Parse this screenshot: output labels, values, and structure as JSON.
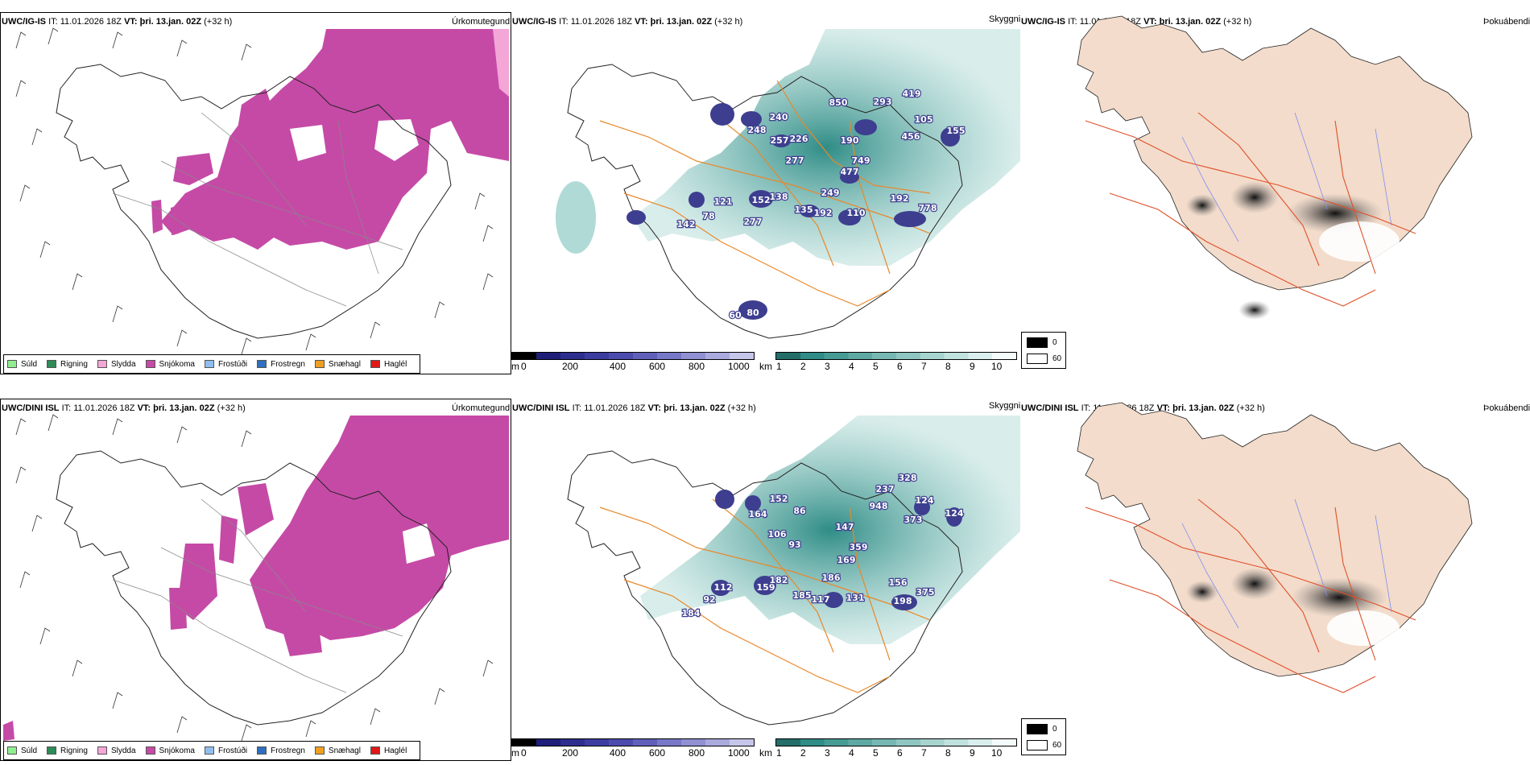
{
  "rows": [
    {
      "model": "UWC/IG-IS",
      "it_label": "IT:",
      "it_value": "11.01.2026 18Z",
      "vt_label": "VT:",
      "vt_value": "þri. 13.jan. 02Z",
      "lead": "(+32 h)",
      "height_labels": [
        "850",
        "293",
        "419",
        "240",
        "248",
        "257",
        "226",
        "105",
        "456",
        "155",
        "190",
        "277",
        "749",
        "477",
        "249",
        "121",
        "152",
        "138",
        "135",
        "192",
        "110",
        "192",
        "778",
        "78",
        "142",
        "277",
        "60",
        "80"
      ]
    },
    {
      "model": "UWC/DINI ISL",
      "it_label": "IT:",
      "it_value": "11.01.2026 18Z",
      "vt_label": "VT:",
      "vt_value": "þri. 13.jan. 02Z",
      "lead": "(+32 h)",
      "height_labels": [
        "237",
        "328",
        "124",
        "124",
        "948",
        "373",
        "152",
        "164",
        "86",
        "106",
        "93",
        "147",
        "359",
        "169",
        "186",
        "112",
        "92",
        "159",
        "182",
        "185",
        "117",
        "131",
        "156",
        "198",
        "375",
        "184"
      ]
    }
  ],
  "panel_titles": {
    "precip": "Úrkomutegund",
    "visibility": "Skyggni",
    "fog": "Þokuábendi"
  },
  "precip_legend": [
    {
      "label": "Súld",
      "color": "#90ee90"
    },
    {
      "label": "Rigning",
      "color": "#2e8b57"
    },
    {
      "label": "Slydda",
      "color": "#f4a6d7"
    },
    {
      "label": "Snjókoma",
      "color": "#c54aa6"
    },
    {
      "label": "Frostúði",
      "color": "#8fbfef"
    },
    {
      "label": "Frostregn",
      "color": "#2f6fbf"
    },
    {
      "label": "Snæhagl",
      "color": "#f0a020"
    },
    {
      "label": "Haglél",
      "color": "#e01818"
    }
  ],
  "ceiling_bar": {
    "unit": "m",
    "ticks": [
      "0",
      "200",
      "400",
      "600",
      "800",
      "1000"
    ]
  },
  "visibility_bar": {
    "unit": "km",
    "ticks": [
      "1",
      "2",
      "3",
      "4",
      "5",
      "6",
      "7",
      "8",
      "9",
      "10"
    ]
  },
  "fog_legend": {
    "high": "0",
    "low": "60"
  },
  "colors": {
    "snow": "#c54aa6",
    "teal": "#2f8c86",
    "low_cloud": "#3d3e8f",
    "roads": "#e8882a",
    "land_fog": "#f3dccb",
    "roads_fog": "#e0502a",
    "rivers": "#7f8ff0"
  }
}
